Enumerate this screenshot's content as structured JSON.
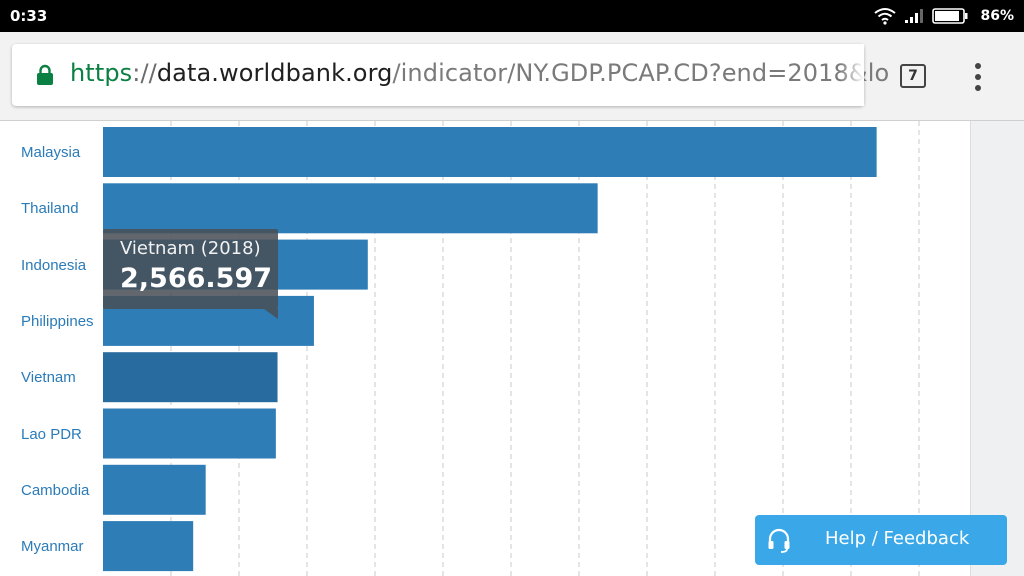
{
  "status_bar": {
    "time": "0:33",
    "battery": "86%"
  },
  "browser": {
    "url_scheme": "https",
    "url_sep": "://",
    "url_host": "data.worldbank.org",
    "url_path": "/indicator/NY.GDP.PCAP.CD?end=2018&lo",
    "tab_count": "7",
    "icons": {
      "lock": "lock-icon",
      "tabs": "tab-switcher-icon",
      "menu": "more-vert-icon"
    },
    "colors": {
      "scheme": "#0b8043"
    }
  },
  "chart_data": {
    "type": "bar",
    "orientation": "horizontal",
    "categories": [
      "Malaysia",
      "Thailand",
      "Indonesia",
      "Philippines",
      "Vietnam",
      "Lao PDR",
      "Cambodia",
      "Myanmar"
    ],
    "values": [
      11377,
      7274,
      3894,
      3102,
      2566.597,
      2542,
      1510,
      1326
    ],
    "highlight_index": 4,
    "xlim": [
      0,
      12500
    ],
    "grid": "vertical dashed",
    "colors": {
      "bar": "#2e7db7",
      "bar_hover": "#276b9f",
      "label": "#2b7bb8"
    }
  },
  "tooltip": {
    "title": "Vietnam (2018)",
    "value": "2,566.597"
  },
  "help": {
    "label": "Help / Feedback",
    "icon": "headset-icon",
    "color": "#3aa8e8"
  }
}
